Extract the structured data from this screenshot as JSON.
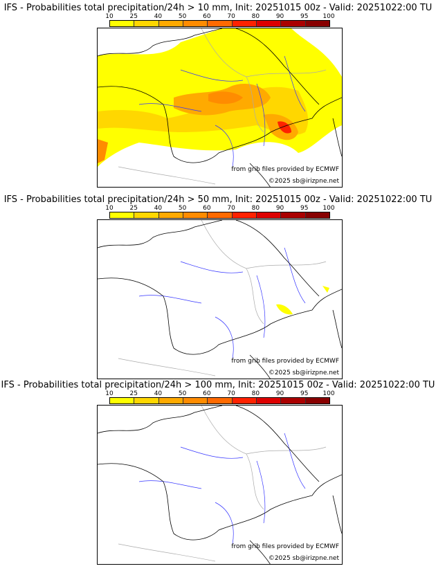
{
  "panels": [
    {
      "title": "IFS - Probabilities total precipitation/24h > 10 mm, Init: 20251015 00z - Valid: 20251022:00 TU",
      "level": "high"
    },
    {
      "title": "IFS - Probabilities total precipitation/24h > 50 mm, Init: 20251015 00z - Valid: 20251022:00 TU",
      "level": "low"
    },
    {
      "title": "IFS - Probabilities total precipitation/24h > 100 mm, Init: 20251015 00z - Valid: 20251022:00 TU",
      "level": "none"
    }
  ],
  "colorbar": {
    "ticks": [
      "10",
      "25",
      "40",
      "50",
      "60",
      "70",
      "80",
      "90",
      "95",
      "100"
    ],
    "colors": [
      "#ffff00",
      "#ffd700",
      "#ffaa00",
      "#ff8c00",
      "#ff6a00",
      "#ff2200",
      "#dd0000",
      "#aa0000",
      "#880000",
      "#600000"
    ]
  },
  "credits": {
    "source": "from grib files provided by ECMWF",
    "copyright": "©2025 sb@irizpne.net"
  }
}
